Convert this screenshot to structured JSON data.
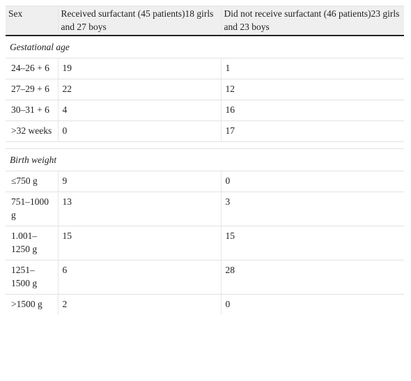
{
  "table": {
    "header": [
      "Sex",
      "Received surfactant (45 patients)18 girls and 27 boys",
      "Did not receive surfactant (46 patients)23 girls and 23 boys"
    ],
    "sections": [
      {
        "title": "Gestational age",
        "rows": [
          [
            "24–26 + 6",
            19,
            1
          ],
          [
            "27–29 + 6",
            22,
            12
          ],
          [
            "30–31 + 6",
            4,
            16
          ],
          [
            ">32 weeks",
            0,
            17
          ]
        ]
      },
      {
        "title": "Birth weight",
        "rows": [
          [
            "≤750 g",
            9,
            0
          ],
          [
            "751–1000 g",
            13,
            3
          ],
          [
            "1.001–1250 g",
            15,
            15
          ],
          [
            "1251–1500 g",
            6,
            28
          ],
          [
            ">1500 g",
            2,
            0
          ]
        ]
      }
    ]
  }
}
